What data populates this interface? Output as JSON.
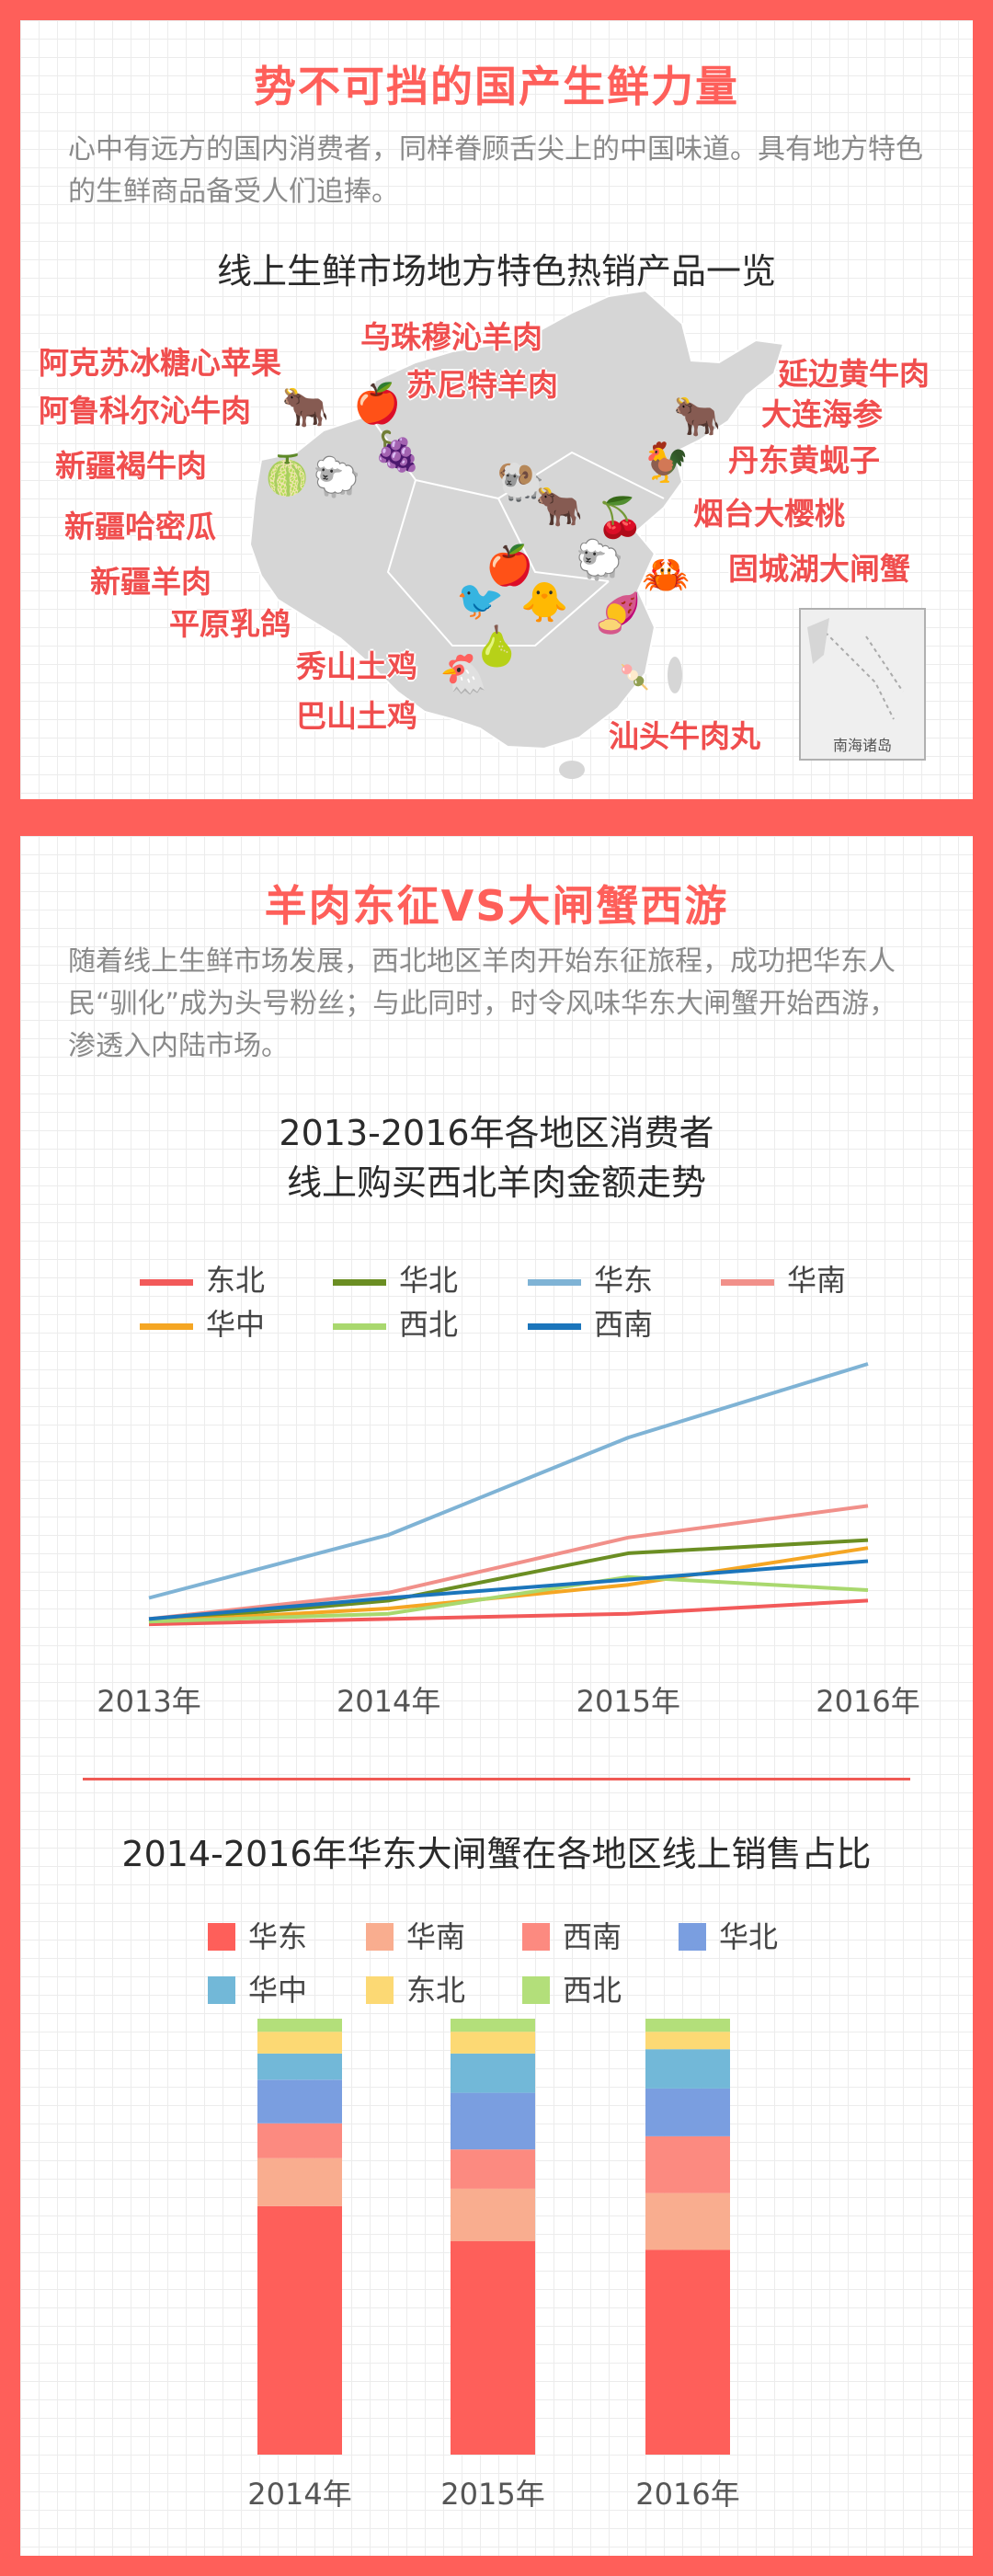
{
  "section1": {
    "title": "势不可挡的国产生鲜力量",
    "intro": "心中有远方的国内消费者，同样眷顾舌尖上的中国味道。具有地方特色的生鲜商品备受人们追捧。",
    "map_title": "线上生鲜市场地方特色热销产品一览",
    "labels": [
      "阿克苏冰糖心苹果",
      "阿鲁科尔沁牛肉",
      "新疆褐牛肉",
      "新疆哈密瓜",
      "新疆羊肉",
      "平原乳鸽",
      "乌珠穆沁羊肉",
      "苏尼特羊肉",
      "延边黄牛肉",
      "大连海参",
      "丹东黄蚬子",
      "烟台大樱桃",
      "固城湖大闸蟹",
      "秀山土鸡",
      "巴山土鸡",
      "汕头牛肉丸"
    ],
    "inset_label": "南海诸岛"
  },
  "section2": {
    "title": "羊肉东征VS大闸蟹西游",
    "intro": "随着线上生鲜市场发展，西北地区羊肉开始东征旅程，成功把华东人民“驯化”成为头号粉丝；与此同时，时令风味华东大闸蟹开始西游，渗透入内陆市场。"
  },
  "chart_data": [
    {
      "type": "line",
      "title": "2013-2016年各地区消费者 线上购买西北羊肉金额走势",
      "title_lines": [
        "2013-2016年各地区消费者",
        "线上购买西北羊肉金额走势"
      ],
      "x": [
        "2013年",
        "2014年",
        "2015年",
        "2016年"
      ],
      "ylim": [
        0,
        100
      ],
      "grid": false,
      "legend_position": "top",
      "series": [
        {
          "name": "东北",
          "color": "#f25a5a",
          "values": [
            1,
            3,
            5,
            10
          ]
        },
        {
          "name": "华北",
          "color": "#6b8e23",
          "values": [
            2,
            10,
            28,
            33
          ]
        },
        {
          "name": "华东",
          "color": "#7fb3d5",
          "values": [
            11,
            35,
            72,
            100
          ]
        },
        {
          "name": "华南",
          "color": "#f1908a",
          "values": [
            3,
            13,
            34,
            46
          ]
        },
        {
          "name": "华中",
          "color": "#f5a623",
          "values": [
            2,
            7,
            16,
            30
          ]
        },
        {
          "name": "西北",
          "color": "#a9d86e",
          "values": [
            2,
            5,
            19,
            14
          ]
        },
        {
          "name": "西南",
          "color": "#1b75bb",
          "values": [
            3,
            11,
            18,
            25
          ]
        }
      ]
    },
    {
      "type": "bar",
      "stacked": true,
      "title": "2014-2016年华东大闸蟹在各地区线上销售占比",
      "categories": [
        "2014年",
        "2015年",
        "2016年"
      ],
      "ylim": [
        0,
        100
      ],
      "legend_position": "top",
      "series": [
        {
          "name": "华东",
          "color": "#fe5f5a",
          "values": [
            57,
            49,
            47
          ]
        },
        {
          "name": "华南",
          "color": "#f9ad8f",
          "values": [
            11,
            12,
            13
          ]
        },
        {
          "name": "西南",
          "color": "#fc8a80",
          "values": [
            8,
            9,
            13
          ]
        },
        {
          "name": "华北",
          "color": "#7a9ee0",
          "values": [
            10,
            13,
            11
          ]
        },
        {
          "name": "华中",
          "color": "#72b8d8",
          "values": [
            6,
            9,
            9
          ]
        },
        {
          "name": "东北",
          "color": "#fcd974",
          "values": [
            5,
            5,
            4
          ]
        },
        {
          "name": "西北",
          "color": "#b3df7a",
          "values": [
            3,
            3,
            3
          ]
        }
      ]
    }
  ]
}
